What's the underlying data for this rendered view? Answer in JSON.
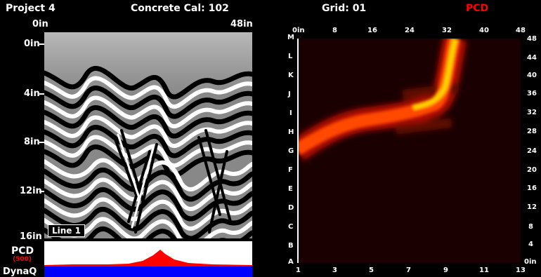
{
  "header": {
    "project": "Project 4",
    "concrete_cal": "Concrete Cal: 102",
    "grid": "Grid: 01",
    "pcd": "PCD"
  },
  "scan": {
    "x_start": "0in",
    "x_end": "48in",
    "depth_labels": [
      "0in",
      "4in",
      "8in",
      "12in",
      "16in"
    ],
    "line_label": "Line 1"
  },
  "bottom": {
    "pcd_label": "PCD",
    "pcd_value": "(500)",
    "dynaq_label": "DynaQ"
  },
  "grid_view": {
    "top_labels": [
      "0in",
      "8",
      "16",
      "24",
      "32",
      "40",
      "48"
    ],
    "bottom_labels": [
      "1",
      "3",
      "5",
      "7",
      "9",
      "11",
      "13"
    ],
    "row_letters": [
      "M",
      "L",
      "K",
      "J",
      "I",
      "H",
      "G",
      "F",
      "E",
      "D",
      "C",
      "B",
      "A"
    ],
    "right_labels": [
      "48",
      "44",
      "40",
      "36",
      "32",
      "28",
      "24",
      "20",
      "16",
      "12",
      "8",
      "4",
      "0in"
    ]
  },
  "colors": {
    "background": "#000000",
    "pcd_accent": "#ff0000",
    "dynaq_band": "#0000ff",
    "heat_hot": "#ffdd00",
    "heat_cool": "#1a0000"
  }
}
